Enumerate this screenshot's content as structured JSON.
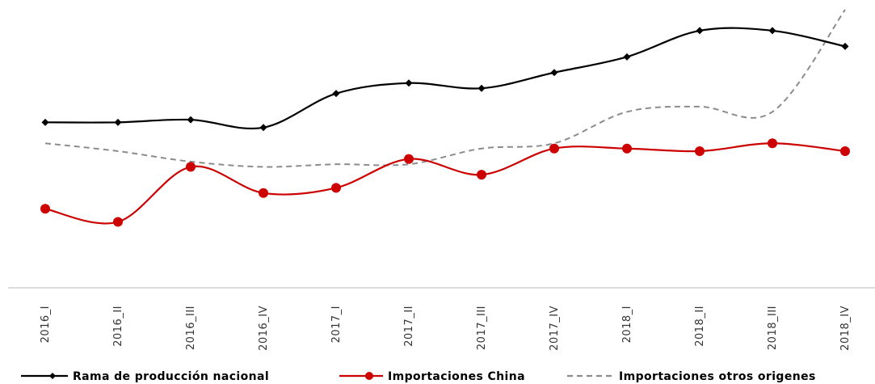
{
  "chart_data": {
    "type": "line",
    "title": "",
    "xlabel": "",
    "ylabel": "",
    "categories": [
      "2016_I",
      "2016_II",
      "2016_III",
      "2016_IV",
      "2017_I",
      "2017_II",
      "2017_III",
      "2017_IV",
      "2018_I",
      "2018_II",
      "2018_III",
      "2018_IV"
    ],
    "ylim": [
      0,
      100
    ],
    "grid": false,
    "legend_position": "bottom",
    "series": [
      {
        "name": "Rama de producción nacional",
        "color": "#000000",
        "line_style": "solid",
        "marker": "diamond",
        "values": [
          57,
          57,
          58,
          55,
          68,
          72,
          70,
          76,
          82,
          92,
          92,
          86
        ]
      },
      {
        "name": "Importaciones China",
        "color": "#cc0000",
        "line_style": "solid",
        "marker": "circle",
        "values": [
          24,
          19,
          40,
          30,
          32,
          43,
          37,
          47,
          47,
          46,
          49,
          46
        ]
      },
      {
        "name": "Importaciones otros origenes",
        "color": "#8c8c8c",
        "line_style": "dashed",
        "marker": "none",
        "values": [
          49,
          46,
          42,
          40,
          41,
          41,
          47,
          49,
          61,
          63,
          61,
          100
        ]
      }
    ]
  }
}
